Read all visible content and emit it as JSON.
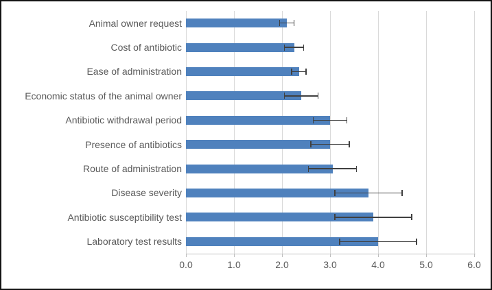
{
  "chart_data": {
    "type": "bar",
    "orientation": "horizontal",
    "title": "",
    "xlabel": "",
    "ylabel": "",
    "categories": [
      "Animal owner request",
      "Cost of antibiotic",
      "Ease of administration",
      "Economic status of the animal owner",
      "Antibiotic withdrawal period",
      "Presence of antibiotics",
      "Route of administration",
      "Disease severity",
      "Antibiotic susceptibility test",
      "Laboratory test results"
    ],
    "values": [
      2.1,
      2.25,
      2.35,
      2.4,
      3.0,
      3.0,
      3.05,
      3.8,
      3.9,
      4.0
    ],
    "error_bars": [
      0.15,
      0.2,
      0.15,
      0.35,
      0.35,
      0.4,
      0.5,
      0.7,
      0.8,
      0.8
    ],
    "x_ticks": [
      "0.0",
      "1.0",
      "2.0",
      "3.0",
      "4.0",
      "5.0",
      "6.0"
    ],
    "xlim": [
      0,
      6
    ],
    "grid": true,
    "legend": false,
    "colors": {
      "bar": "#4f81bd",
      "error_bar": "#404040",
      "gridline": "#d9d9d9",
      "axis_line": "#bfbfbf",
      "label_text": "#595959",
      "frame_border": "#141414",
      "background": "#ffffff"
    }
  }
}
